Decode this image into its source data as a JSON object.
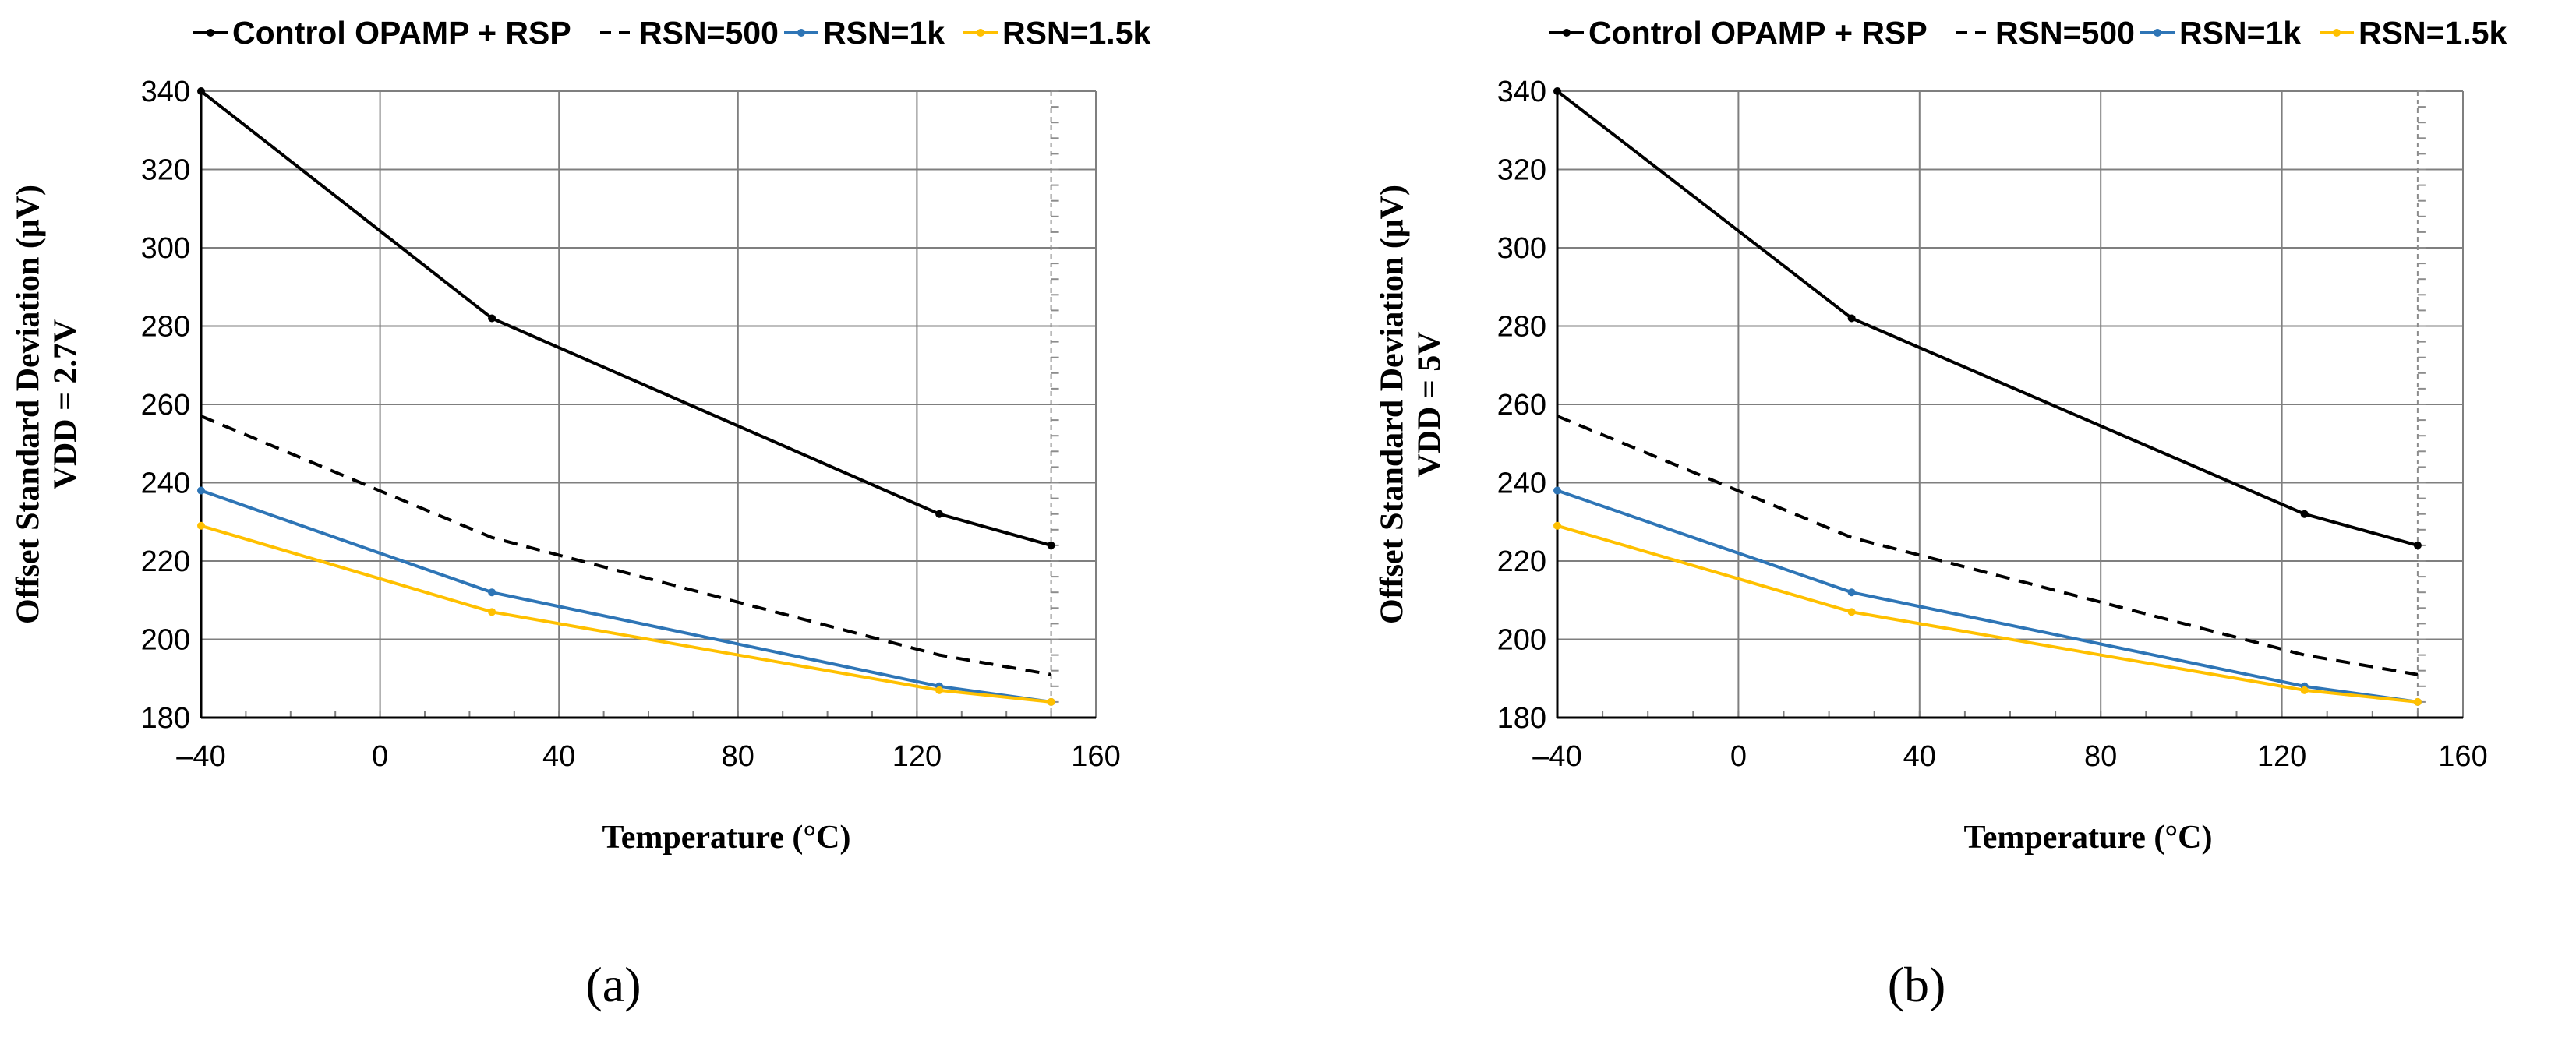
{
  "chart_data": [
    {
      "type": "line",
      "panel_label": "(a)",
      "title": "",
      "xlabel": "Temperature (°C)",
      "ylabel_lines": [
        "Offset Standard Deviation (μV)",
        "VDD = 2.7V"
      ],
      "xlim": [
        -40,
        160
      ],
      "ylim": [
        180,
        340
      ],
      "xticks": [
        -40,
        0,
        40,
        80,
        120,
        160
      ],
      "xtick_labels": [
        "–40",
        "0",
        "40",
        "80",
        "120",
        "160"
      ],
      "yticks": [
        180,
        200,
        220,
        240,
        260,
        280,
        300,
        320,
        340
      ],
      "ytick_labels": [
        "180",
        "200",
        "220",
        "240",
        "260",
        "280",
        "300",
        "320",
        "340"
      ],
      "grid": true,
      "legend_position": "top",
      "series": [
        {
          "name": "Control OPAMP + RSP",
          "color": "#000000",
          "style": "solid",
          "x": [
            -40,
            25,
            125,
            150
          ],
          "values": [
            340,
            282,
            232,
            224
          ]
        },
        {
          "name": "RSN=500",
          "color": "#000000",
          "style": "dashed",
          "x": [
            -40,
            25,
            125,
            150
          ],
          "values": [
            257,
            226,
            196,
            191
          ]
        },
        {
          "name": "RSN=1k",
          "color": "#2E75B6",
          "style": "solid",
          "x": [
            -40,
            25,
            125,
            150
          ],
          "values": [
            238,
            212,
            188,
            184
          ]
        },
        {
          "name": "RSN=1.5k",
          "color": "#FFC000",
          "style": "solid",
          "x": [
            -40,
            25,
            125,
            150
          ],
          "values": [
            229,
            207,
            187,
            184
          ]
        }
      ]
    },
    {
      "type": "line",
      "panel_label": "(b)",
      "title": "",
      "xlabel": "Temperature (°C)",
      "ylabel_lines": [
        "Offset Standard Deviation (μV)",
        "VDD = 5V"
      ],
      "xlim": [
        -40,
        160
      ],
      "ylim": [
        180,
        340
      ],
      "xticks": [
        -40,
        0,
        40,
        80,
        120,
        160
      ],
      "xtick_labels": [
        "–40",
        "0",
        "40",
        "80",
        "120",
        "160"
      ],
      "yticks": [
        180,
        200,
        220,
        240,
        260,
        280,
        300,
        320,
        340
      ],
      "ytick_labels": [
        "180",
        "200",
        "220",
        "240",
        "260",
        "280",
        "300",
        "320",
        "340"
      ],
      "grid": true,
      "legend_position": "top",
      "series": [
        {
          "name": "Control OPAMP + RSP",
          "color": "#000000",
          "style": "solid",
          "x": [
            -40,
            25,
            125,
            150
          ],
          "values": [
            340,
            282,
            232,
            224
          ]
        },
        {
          "name": "RSN=500",
          "color": "#000000",
          "style": "dashed",
          "x": [
            -40,
            25,
            125,
            150
          ],
          "values": [
            257,
            226,
            196,
            191
          ]
        },
        {
          "name": "RSN=1k",
          "color": "#2E75B6",
          "style": "solid",
          "x": [
            -40,
            25,
            125,
            150
          ],
          "values": [
            238,
            212,
            188,
            184
          ]
        },
        {
          "name": "RSN=1.5k",
          "color": "#FFC000",
          "style": "solid",
          "x": [
            -40,
            25,
            125,
            150
          ],
          "values": [
            229,
            207,
            187,
            184
          ]
        }
      ]
    }
  ]
}
